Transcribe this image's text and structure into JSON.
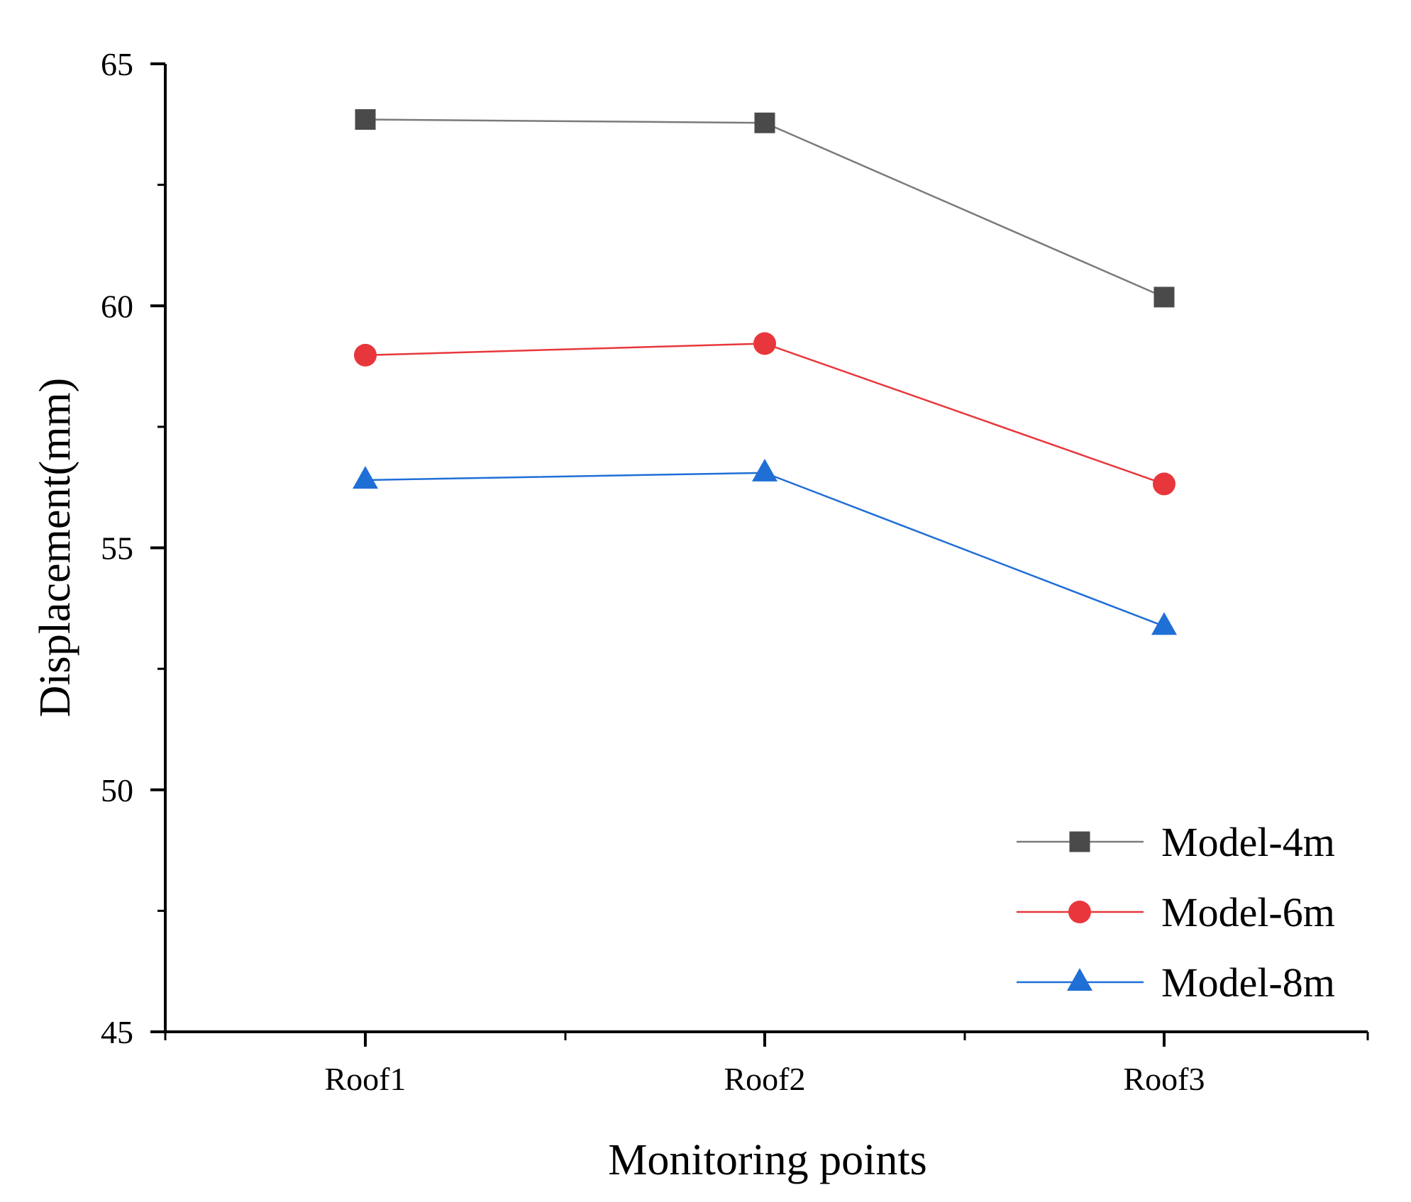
{
  "chart_data": {
    "type": "line",
    "title": "",
    "xlabel": "Monitoring points",
    "ylabel": "Displacement(mm)",
    "categories": [
      "Roof1",
      "Roof2",
      "Roof3"
    ],
    "ylim": [
      45,
      65
    ],
    "yticks": [
      45,
      50,
      55,
      60,
      65
    ],
    "ytick_labels": [
      "45",
      "50",
      "55",
      "60",
      "65"
    ],
    "legend_position": "bottom-right",
    "grid": false,
    "series": [
      {
        "name": "Model-4m",
        "marker": "square",
        "color": "#4a4a4a",
        "line_color": "#7a7a7a",
        "values": [
          63.85,
          63.78,
          60.18
        ]
      },
      {
        "name": "Model-6m",
        "marker": "circle",
        "color": "#e8373c",
        "line_color": "#e8373c",
        "values": [
          58.98,
          59.22,
          56.32
        ]
      },
      {
        "name": "Model-8m",
        "marker": "triangle",
        "color": "#1f6fd6",
        "line_color": "#1f6fd6",
        "values": [
          56.4,
          56.55,
          53.38
        ]
      }
    ]
  }
}
